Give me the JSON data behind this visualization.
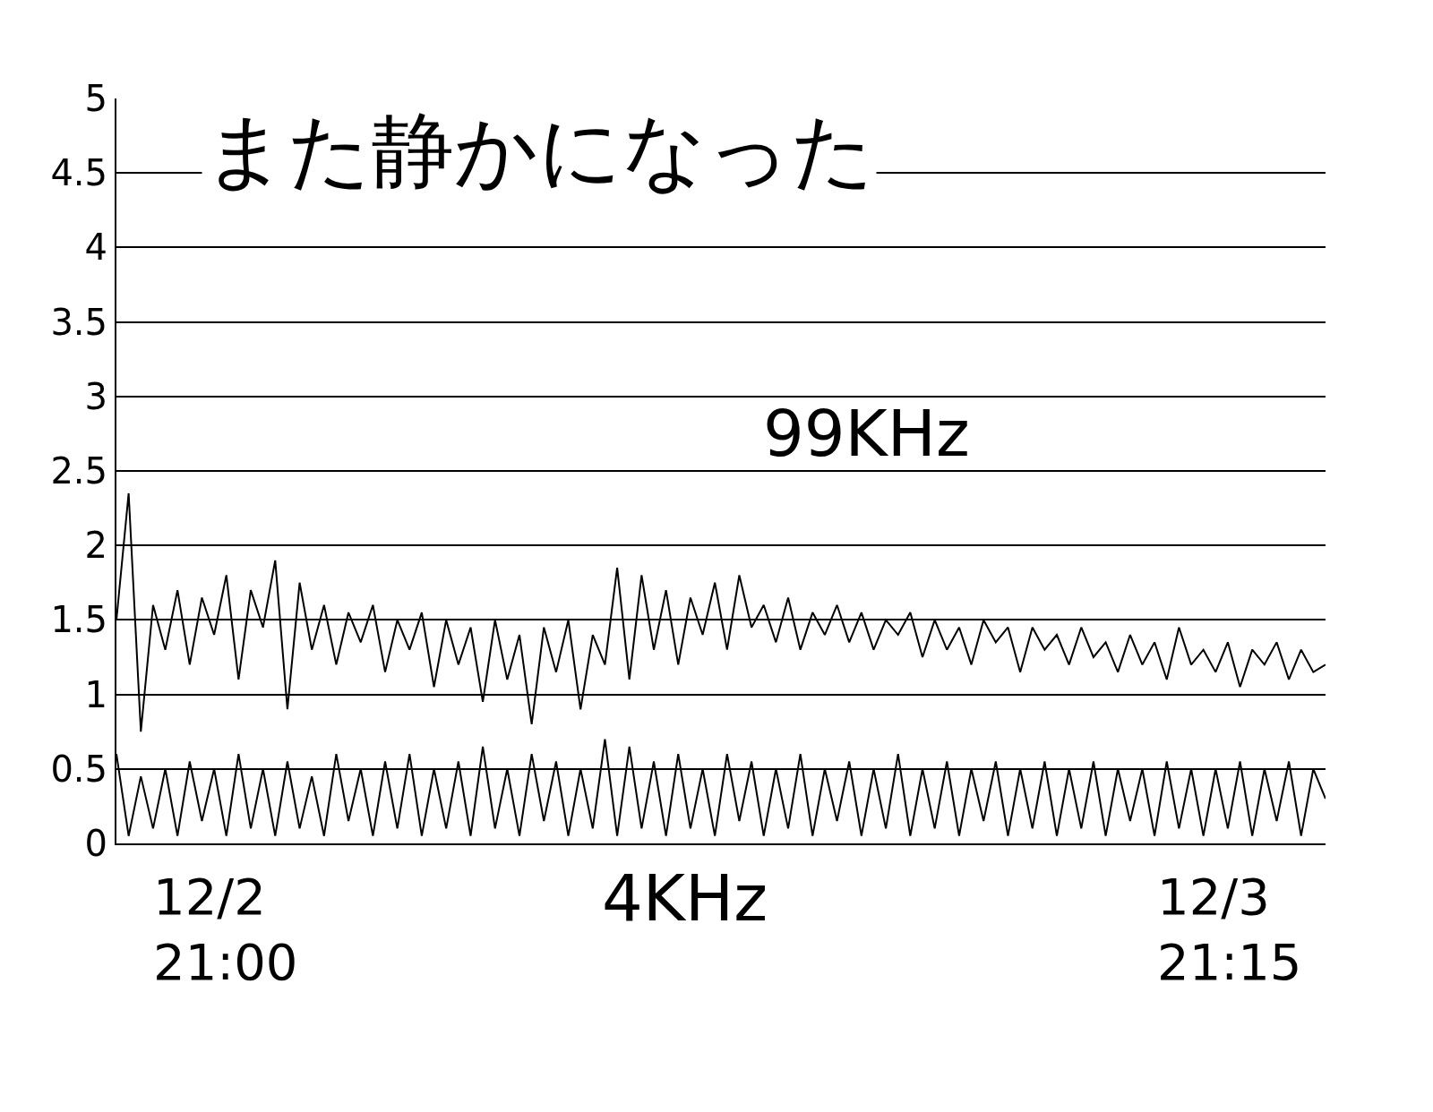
{
  "chart_data": {
    "type": "line",
    "title": "また静かになった",
    "categories": [
      null,
      null,
      null,
      null,
      null,
      null,
      null,
      null,
      null,
      null,
      null,
      null,
      null,
      null,
      null,
      null,
      null,
      null,
      null,
      null,
      null,
      null,
      null,
      null,
      null,
      null,
      null,
      null,
      null,
      null,
      null,
      null,
      null,
      null,
      null,
      null,
      null,
      null,
      null,
      null,
      null,
      null,
      null,
      null,
      null,
      null,
      null,
      null,
      null,
      null,
      null,
      null,
      null,
      null,
      null,
      null,
      null,
      null,
      null,
      null,
      null,
      null,
      null,
      null,
      null,
      null,
      null,
      null,
      null,
      null,
      null,
      null,
      null,
      null,
      null,
      null,
      null,
      null,
      null,
      null,
      null,
      null,
      null,
      null,
      null,
      null,
      null,
      null,
      null,
      null,
      null,
      null,
      null,
      null,
      null,
      null,
      null,
      null,
      null,
      null
    ],
    "series": [
      {
        "name": "99KHz",
        "color": "#000000",
        "values": [
          1.5,
          2.35,
          0.75,
          1.6,
          1.3,
          1.7,
          1.2,
          1.65,
          1.4,
          1.8,
          1.1,
          1.7,
          1.45,
          1.9,
          0.9,
          1.75,
          1.3,
          1.6,
          1.2,
          1.55,
          1.35,
          1.6,
          1.15,
          1.5,
          1.3,
          1.55,
          1.05,
          1.5,
          1.2,
          1.45,
          0.95,
          1.5,
          1.1,
          1.4,
          0.8,
          1.45,
          1.15,
          1.5,
          0.9,
          1.4,
          1.2,
          1.85,
          1.1,
          1.8,
          1.3,
          1.7,
          1.2,
          1.65,
          1.4,
          1.75,
          1.3,
          1.8,
          1.45,
          1.6,
          1.35,
          1.65,
          1.3,
          1.55,
          1.4,
          1.6,
          1.35,
          1.55,
          1.3,
          1.5,
          1.4,
          1.55,
          1.25,
          1.5,
          1.3,
          1.45,
          1.2,
          1.5,
          1.35,
          1.45,
          1.15,
          1.45,
          1.3,
          1.4,
          1.2,
          1.45,
          1.25,
          1.35,
          1.15,
          1.4,
          1.2,
          1.35,
          1.1,
          1.45,
          1.2,
          1.3,
          1.15,
          1.35,
          1.05,
          1.3,
          1.2,
          1.35,
          1.1,
          1.3,
          1.15,
          1.2
        ]
      },
      {
        "name": "4KHz",
        "color": "#000000",
        "values": [
          0.6,
          0.05,
          0.45,
          0.1,
          0.5,
          0.05,
          0.55,
          0.15,
          0.5,
          0.05,
          0.6,
          0.1,
          0.5,
          0.05,
          0.55,
          0.1,
          0.45,
          0.05,
          0.6,
          0.15,
          0.5,
          0.05,
          0.55,
          0.1,
          0.6,
          0.05,
          0.5,
          0.1,
          0.55,
          0.05,
          0.65,
          0.1,
          0.5,
          0.05,
          0.6,
          0.15,
          0.55,
          0.05,
          0.5,
          0.1,
          0.7,
          0.05,
          0.65,
          0.1,
          0.55,
          0.05,
          0.6,
          0.1,
          0.5,
          0.05,
          0.6,
          0.15,
          0.55,
          0.05,
          0.5,
          0.1,
          0.6,
          0.05,
          0.5,
          0.15,
          0.55,
          0.05,
          0.5,
          0.1,
          0.6,
          0.05,
          0.5,
          0.1,
          0.55,
          0.05,
          0.5,
          0.15,
          0.55,
          0.05,
          0.5,
          0.1,
          0.55,
          0.05,
          0.5,
          0.1,
          0.55,
          0.05,
          0.5,
          0.15,
          0.5,
          0.05,
          0.55,
          0.1,
          0.5,
          0.05,
          0.5,
          0.1,
          0.55,
          0.05,
          0.5,
          0.15,
          0.55,
          0.05,
          0.5,
          0.3
        ]
      }
    ],
    "ylim": [
      0,
      5
    ],
    "yticks": [
      0,
      0.5,
      1,
      1.5,
      2,
      2.5,
      3,
      3.5,
      4,
      4.5,
      5
    ],
    "annotations": [
      "12/2\n21:00",
      "12/3\n21:15"
    ],
    "grid": "y",
    "legend": false,
    "marker": "none",
    "line_style": "solid"
  }
}
